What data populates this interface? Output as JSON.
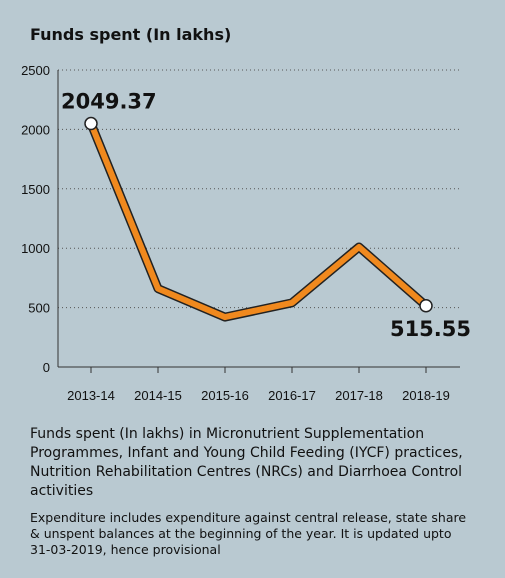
{
  "title": "Funds spent (In lakhs)",
  "caption": "Funds spent (In lakhs) in Micronutrient Supplementation Programmes, Infant and Young Child Feeding (IYCF) practices, Nutrition Rehabilitation Centres (NRCs) and Diarrhoea Control activities",
  "note": "Expenditure includes expenditure against central release, state share & unspent balances at the beginning of the year. It is updated upto 31-03-2019, hence provisional",
  "colors": {
    "background": "#b9c9d1",
    "line": "#f0891e",
    "line_outline": "#222222",
    "marker_fill": "#ffffff"
  },
  "chart_data": {
    "type": "line",
    "title": "Funds spent (In lakhs)",
    "xlabel": "",
    "ylabel": "",
    "categories": [
      "2013-14",
      "2014-15",
      "2015-16",
      "2016-17",
      "2017-18",
      "2018-19"
    ],
    "series": [
      {
        "values": [
          2049.37,
          660,
          420,
          540,
          1010,
          515.55
        ]
      }
    ],
    "ylim": [
      0,
      2500
    ],
    "yticks": [
      "0",
      "500",
      "1000",
      "1500",
      "2000",
      "2500"
    ],
    "grid": "horizontal dotted",
    "callouts": [
      {
        "label": "2049.37",
        "category": "2013-14"
      },
      {
        "label": "515.55",
        "category": "2018-19"
      }
    ]
  }
}
